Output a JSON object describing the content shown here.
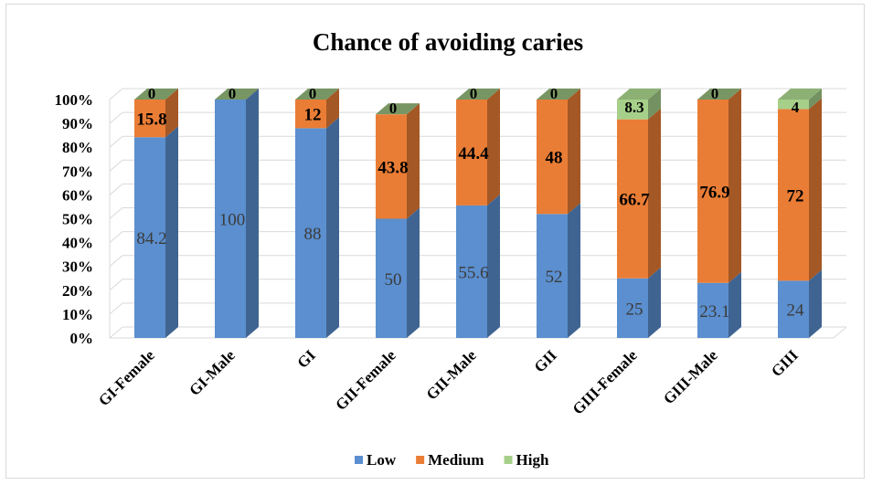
{
  "chart_data": {
    "type": "bar",
    "stacked": true,
    "percent_stacked": true,
    "three_d": true,
    "title": "Chance of avoiding caries",
    "categories": [
      "GI-Female",
      "GI-Male",
      "GI",
      "GII-Female",
      "GII-Male",
      "GII",
      "GIII-Female",
      "GIII-Male",
      "GIII"
    ],
    "series": [
      {
        "name": "Low",
        "color": "#5b8fcf",
        "values": [
          84.2,
          100,
          88,
          50,
          55.6,
          52,
          25,
          23.1,
          24
        ]
      },
      {
        "name": "Medium",
        "color": "#ea7d35",
        "values": [
          15.8,
          0,
          12,
          43.8,
          44.4,
          48,
          66.7,
          76.9,
          72
        ]
      },
      {
        "name": "High",
        "color": "#a6d08a",
        "values": [
          0,
          0,
          0,
          0,
          0,
          0,
          8.3,
          0,
          4
        ]
      }
    ],
    "y_ticks": [
      "0%",
      "10%",
      "20%",
      "30%",
      "40%",
      "50%",
      "60%",
      "70%",
      "80%",
      "90%",
      "100%"
    ],
    "ylim": [
      0,
      100
    ],
    "grid": true,
    "legend": "bottom"
  }
}
